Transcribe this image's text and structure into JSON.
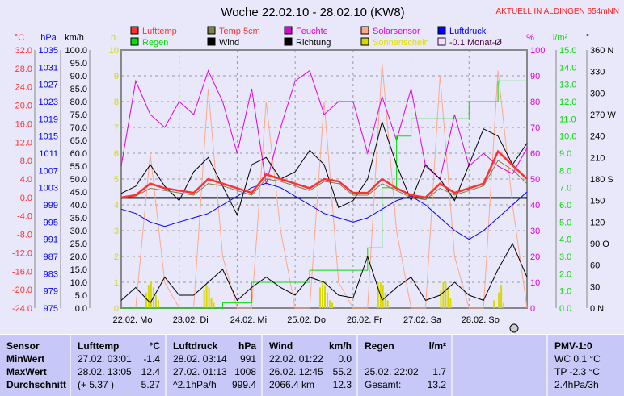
{
  "title": "Woche 22.02.10 - 28.02.10 (KW8)",
  "status": "AKTUELL IN ALDINGEN 654mNN",
  "chart_data": {
    "type": "line",
    "title": "Woche 22.02.10 - 28.02.10 (KW8)",
    "x_unit": "hours since 22.02. 00:00",
    "x": [
      0,
      6,
      12,
      18,
      24,
      30,
      36,
      42,
      48,
      54,
      60,
      66,
      72,
      78,
      84,
      90,
      96,
      102,
      108,
      114,
      120,
      126,
      132,
      138,
      144,
      150,
      156,
      162,
      168
    ],
    "day_labels": [
      "22.02. Mo",
      "23.02. Di",
      "24.02. Mi",
      "25.02. Do",
      "26.02. Fr",
      "27.02. Sa",
      "28.02. So"
    ],
    "axes": {
      "temp": {
        "label": "°C",
        "range": [
          -24,
          32
        ],
        "ticks": [
          "32.0",
          "28.0",
          "24.0",
          "20.0",
          "16.0",
          "12.0",
          "8.0",
          "4.0",
          "0.0",
          "-4.0",
          "-8.0",
          "-12.0",
          "-16.0",
          "-20.0",
          "-24.0"
        ],
        "color": "#ff3030"
      },
      "pressure": {
        "label": "hPa",
        "range": [
          975,
          1035
        ],
        "ticks": [
          "1035",
          "1031",
          "1027",
          "1023",
          "1019",
          "1015",
          "1011",
          "1007",
          "1003",
          "999",
          "995",
          "991",
          "987",
          "983",
          "979",
          "975"
        ],
        "color": "#0000ff"
      },
      "wind": {
        "label": "km/h",
        "range": [
          0,
          100
        ],
        "ticks": [
          "100.0",
          "95.0",
          "90.0",
          "85.0",
          "80.0",
          "75.0",
          "70.0",
          "65.0",
          "60.0",
          "55.0",
          "50.0",
          "45.0",
          "40.0",
          "35.0",
          "30.0",
          "25.0",
          "20.0",
          "15.0",
          "10.0",
          "5.0",
          "0.0"
        ],
        "color": "#000000"
      },
      "sun": {
        "label": "h",
        "range": [
          0,
          10
        ],
        "ticks": [
          "10",
          "9",
          "8",
          "7",
          "6",
          "5",
          "4",
          "3",
          "2",
          "1",
          "0"
        ],
        "color": "#d8d800"
      },
      "humidity": {
        "label": "%",
        "range": [
          0,
          100
        ],
        "ticks": [
          "100",
          "90",
          "80",
          "70",
          "60",
          "50",
          "40",
          "30",
          "20",
          "10",
          "0"
        ],
        "color": "#e000e0"
      },
      "rain": {
        "label": "l/m²",
        "range": [
          0,
          15
        ],
        "ticks": [
          "15.0",
          "14.0",
          "13.0",
          "12.0",
          "11.0",
          "10.0",
          "9.0",
          "8.0",
          "7.0",
          "6.0",
          "5.0",
          "4.0",
          "3.0",
          "2.0",
          "1.0",
          "0.0"
        ],
        "color": "#00e000"
      },
      "direction": {
        "label": "°",
        "range": [
          0,
          360
        ],
        "ticks": [
          "360 N",
          "330",
          "300",
          "270 W",
          "240",
          "210",
          "180 S",
          "150",
          "120",
          "90  O",
          "60",
          "30",
          "0   N"
        ],
        "color": "#000000"
      }
    },
    "legend": [
      {
        "name": "Lufttemp",
        "color": "#ff3030",
        "text_color": "#ff3030"
      },
      {
        "name": "Temp 5cm",
        "color": "#808040",
        "text_color": "#ff3030"
      },
      {
        "name": "Feuchte",
        "color": "#e000e0",
        "text_color": "#e000e0"
      },
      {
        "name": "Solarsensor",
        "color": "#ffa888",
        "text_color": "#e000e0"
      },
      {
        "name": "Luftdruck",
        "color": "#0000ff",
        "text_color": "#0000ff"
      },
      {
        "name": "Regen",
        "color": "#00e000",
        "text_color": "#00e000"
      },
      {
        "name": "Wind",
        "color": "#000000",
        "text_color": "#000000"
      },
      {
        "name": "Richtung",
        "color": "#000000",
        "text_color": "#000000"
      },
      {
        "name": "Sonnenschein",
        "color": "#d8d800",
        "text_color": "#e0e000"
      },
      {
        "name": "-0.1 Monat-Ø",
        "color": "none",
        "text_color": "#400040"
      }
    ],
    "monthly_avg_temp": -0.1,
    "series": [
      {
        "name": "Solarsensor",
        "axis": "humidity",
        "values": [
          0,
          0,
          60,
          10,
          0,
          0,
          85,
          20,
          0,
          0,
          80,
          30,
          0,
          0,
          80,
          10,
          0,
          0,
          95,
          30,
          0,
          0,
          90,
          20,
          0,
          0,
          92,
          40,
          0
        ]
      },
      {
        "name": "Feuchte",
        "axis": "humidity",
        "values": [
          55,
          88,
          75,
          70,
          80,
          75,
          92,
          80,
          60,
          85,
          48,
          70,
          88,
          92,
          75,
          80,
          80,
          60,
          82,
          65,
          85,
          55,
          50,
          75,
          55,
          60,
          55,
          52,
          62
        ]
      },
      {
        "name": "Regen",
        "axis": "rain",
        "values": [
          0,
          0,
          0,
          0,
          0,
          0,
          0,
          0.3,
          0.3,
          1.5,
          1.5,
          1.5,
          1.5,
          2.2,
          2.2,
          2.2,
          2.2,
          3.5,
          7,
          10,
          11,
          11,
          11,
          11,
          12,
          12,
          13.2,
          13.2,
          13.2
        ]
      },
      {
        "name": "Richtung",
        "axis": "direction",
        "values": [
          160,
          170,
          200,
          170,
          150,
          190,
          210,
          170,
          130,
          200,
          210,
          180,
          190,
          220,
          200,
          140,
          150,
          180,
          260,
          200,
          150,
          200,
          180,
          150,
          200,
          250,
          240,
          200,
          230
        ]
      },
      {
        "name": "Wind",
        "axis": "wind",
        "values": [
          3,
          8,
          2,
          12,
          5,
          5,
          10,
          15,
          3,
          8,
          12,
          8,
          5,
          12,
          10,
          5,
          4,
          20,
          3,
          8,
          12,
          3,
          5,
          10,
          5,
          3,
          15,
          25,
          12
        ]
      },
      {
        "name": "Luftdruck",
        "axis": "pressure",
        "values": [
          998,
          997,
          995,
          994,
          995,
          996,
          997,
          999,
          1001,
          1003,
          1004,
          1003,
          1001,
          999,
          997,
          996,
          995,
          996,
          998,
          1000,
          1001,
          999,
          996,
          993,
          991,
          993,
          996,
          999,
          1002
        ]
      },
      {
        "name": "Temp 5cm",
        "axis": "temp",
        "values": [
          0,
          0.3,
          2,
          1.5,
          1,
          0.5,
          3,
          2.5,
          1.5,
          0.5,
          4,
          3.5,
          2.5,
          1.5,
          3.5,
          3,
          0.5,
          0.5,
          3,
          1.5,
          0,
          -0.5,
          2,
          0.5,
          1.5,
          2.5,
          8,
          6,
          3
        ]
      },
      {
        "name": "Lufttemp",
        "axis": "temp",
        "values": [
          0,
          0.5,
          3,
          2,
          1.5,
          1,
          4,
          3,
          2,
          1,
          5,
          4,
          3,
          2,
          4,
          3.5,
          1,
          1,
          4,
          2,
          0.5,
          0,
          3,
          1,
          2,
          3,
          10,
          7,
          4
        ]
      }
    ],
    "sunshine": {
      "axis": "sun",
      "hours": [
        10,
        11,
        12,
        13,
        14,
        15,
        34,
        35,
        36,
        37,
        38,
        82,
        83,
        84,
        85,
        86,
        87,
        106,
        107,
        108,
        109,
        110,
        132,
        133,
        134,
        135,
        136,
        154,
        156,
        157,
        158
      ],
      "values": [
        0.6,
        0.9,
        1.0,
        0.8,
        0.5,
        0.3,
        0.7,
        0.9,
        0.8,
        0.4,
        0.2,
        0.8,
        1.0,
        0.9,
        0.6,
        0.3,
        0.2,
        1.0,
        1.0,
        0.9,
        0.6,
        0.3,
        0.7,
        1.0,
        1.0,
        0.8,
        0.4,
        0.3,
        0.6,
        0.9,
        0.2
      ]
    }
  },
  "table": {
    "sensor": {
      "header": "Sensor",
      "rows": [
        "MinWert",
        "MaxWert",
        "Durchschnitt"
      ]
    },
    "lufttemp": {
      "header": "Lufttemp",
      "unit": "°C",
      "rows": [
        [
          "27.02.  03:01",
          "-1.4"
        ],
        [
          "28.02.  13:05",
          "12.4"
        ],
        [
          "(+ 5.37 )",
          "5.27"
        ]
      ]
    },
    "luftdruck": {
      "header": "Luftdruck",
      "unit": "hPa",
      "rows": [
        [
          "28.02.  03:14",
          "991"
        ],
        [
          "27.02.  01:13",
          "1008"
        ],
        [
          "^2.1hPa/h",
          "999.4"
        ]
      ]
    },
    "wind": {
      "header": "Wind",
      "unit": "km/h",
      "rows": [
        [
          "22.02.  01:22",
          "0.0"
        ],
        [
          "26.02.  12:45",
          "55.2"
        ],
        [
          "2066.4 km",
          "12.3"
        ]
      ]
    },
    "regen": {
      "header": "Regen",
      "unit": "l/m²",
      "rows": [
        [
          "",
          ""
        ],
        [
          "25.02.  22:02",
          "1.7"
        ],
        [
          "Gesamt:",
          "13.2"
        ]
      ]
    },
    "pmv": {
      "header": "PMV-1:0",
      "rows": [
        "WC 0.1 °C",
        "TP -2.3 °C",
        "2.4hPa/3h"
      ]
    }
  }
}
